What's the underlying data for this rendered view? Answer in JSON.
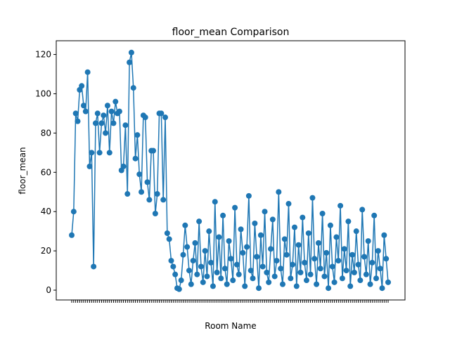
{
  "chart_data": {
    "type": "line",
    "title": "floor_mean Comparison",
    "xlabel": "Room Name",
    "ylabel": "floor_mean",
    "ylim": [
      -5,
      127
    ],
    "yticks": [
      0,
      20,
      40,
      60,
      80,
      100,
      120
    ],
    "grid": false,
    "legend": "none",
    "line_color": "#1f77b4",
    "marker": "circle",
    "x_tick_count": 160,
    "series": [
      {
        "values": [
          28,
          40,
          90,
          86,
          102,
          104,
          94,
          91,
          111,
          63,
          70,
          12,
          85,
          90,
          70,
          85,
          89,
          80,
          94,
          70,
          91,
          85,
          96,
          90,
          91,
          61,
          63,
          84,
          49,
          116,
          121,
          103,
          67,
          79,
          59,
          50,
          89,
          88,
          55,
          46,
          71,
          71,
          39,
          49,
          90,
          90,
          46,
          88,
          29,
          26,
          15,
          12,
          8,
          1,
          0.5,
          5,
          18,
          33,
          22,
          10,
          3,
          15,
          24,
          8,
          35,
          12,
          4,
          20,
          7,
          30,
          14,
          2,
          45,
          9,
          27,
          6,
          38,
          11,
          3,
          25,
          16,
          5,
          42,
          13,
          8,
          31,
          19,
          2,
          22,
          48,
          10,
          6,
          34,
          17,
          1,
          28,
          12,
          40,
          9,
          4,
          21,
          36,
          7,
          15,
          50,
          11,
          3,
          26,
          18,
          44,
          6,
          13,
          32,
          2,
          23,
          9,
          37,
          14,
          5,
          29,
          8,
          47,
          16,
          3,
          24,
          11,
          39,
          7,
          19,
          1,
          33,
          12,
          4,
          27,
          15,
          43,
          6,
          21,
          10,
          35,
          2,
          18,
          9,
          30,
          13,
          5,
          41,
          17,
          8,
          25,
          3,
          14,
          38,
          6,
          20,
          11,
          1,
          28,
          16,
          4
        ]
      }
    ]
  }
}
